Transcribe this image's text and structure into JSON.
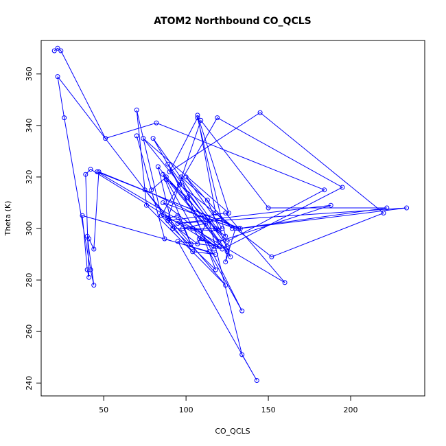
{
  "chart_data": {
    "type": "line",
    "title": "ATOM2 Northbound CO_QCLS",
    "xlabel": "CO_QCLS",
    "ylabel": "Theta (K)",
    "xlim": [
      12,
      245
    ],
    "ylim": [
      235,
      373
    ],
    "xticks": [
      50,
      100,
      150,
      200
    ],
    "yticks": [
      240,
      260,
      280,
      300,
      320,
      340,
      360
    ],
    "marker": "open-circle",
    "line_color": "#0000ff",
    "series": [
      {
        "points": [
          [
            20,
            369
          ],
          [
            22,
            370
          ],
          [
            24,
            369
          ],
          [
            51,
            335
          ],
          [
            82,
            341
          ],
          [
            184,
            315
          ],
          [
            125,
            295
          ],
          [
            88,
            320
          ],
          [
            79,
            315
          ],
          [
            70,
            336
          ],
          [
            87,
            296
          ],
          [
            118,
            290
          ],
          [
            104,
            291
          ],
          [
            22,
            359
          ],
          [
            26,
            343
          ],
          [
            42,
            284
          ],
          [
            44,
            278
          ],
          [
            40,
            297
          ],
          [
            41,
            296
          ],
          [
            44,
            292
          ],
          [
            47,
            322
          ],
          [
            132,
            300
          ],
          [
            222,
            308
          ],
          [
            150,
            308
          ],
          [
            109,
            342
          ],
          [
            89,
            304
          ],
          [
            95,
            305
          ],
          [
            103,
            294
          ],
          [
            86,
            321
          ],
          [
            127,
            289
          ],
          [
            113,
            311
          ],
          [
            97,
            320
          ],
          [
            118,
            284
          ],
          [
            92,
            300
          ],
          [
            122,
            300
          ],
          [
            100,
            320
          ],
          [
            128,
            300
          ],
          [
            118,
            306
          ],
          [
            107,
            344
          ],
          [
            126,
            306
          ],
          [
            74,
            335
          ],
          [
            118,
            300
          ],
          [
            124,
            297
          ],
          [
            107,
            343
          ],
          [
            90,
            322
          ],
          [
            145,
            345
          ],
          [
            220,
            306
          ],
          [
            152,
            289
          ],
          [
            96,
            317
          ],
          [
            80,
            335
          ],
          [
            120,
            299
          ],
          [
            98,
            300
          ],
          [
            112,
            302
          ],
          [
            107,
            294
          ],
          [
            89,
            303
          ],
          [
            124,
            306
          ],
          [
            160,
            279
          ],
          [
            46,
            322
          ],
          [
            133,
            300
          ],
          [
            234,
            308
          ],
          [
            95,
            302
          ],
          [
            188,
            309
          ],
          [
            120,
            295
          ],
          [
            83,
            324
          ],
          [
            92,
            300
          ],
          [
            85,
            305
          ],
          [
            119,
            343
          ],
          [
            195,
            316
          ],
          [
            125,
            293
          ],
          [
            89,
            325
          ],
          [
            134,
            268
          ],
          [
            114,
            291
          ],
          [
            37,
            305
          ],
          [
            40,
            284
          ],
          [
            41,
            281
          ],
          [
            39,
            321
          ],
          [
            42,
            323
          ],
          [
            118,
            293
          ],
          [
            104,
            300
          ],
          [
            85,
            305
          ],
          [
            70,
            346
          ],
          [
            76,
            309
          ],
          [
            124,
            278
          ],
          [
            75,
            315
          ],
          [
            114,
            303
          ],
          [
            134,
            251
          ],
          [
            143,
            241
          ],
          [
            95,
            295
          ],
          [
            120,
            293
          ],
          [
            86,
            310
          ],
          [
            130,
            300
          ],
          [
            124,
            287
          ],
          [
            125,
            291
          ],
          [
            101,
            312
          ],
          [
            88,
            319
          ],
          [
            108,
            296
          ],
          [
            122,
            292
          ],
          [
            110,
            296
          ],
          [
            117,
            292
          ]
        ]
      }
    ]
  }
}
